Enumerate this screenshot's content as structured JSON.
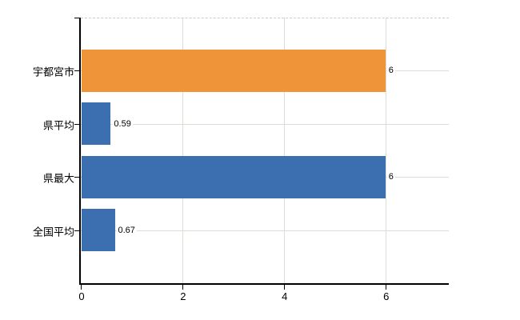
{
  "chart_data": {
    "type": "bar",
    "orientation": "horizontal",
    "title": "",
    "xlabel": "",
    "ylabel": "",
    "categories": [
      "宇都宮市",
      "県平均",
      "県最大",
      "全国平均"
    ],
    "values": [
      6,
      0.59,
      6,
      0.67
    ],
    "value_labels": [
      "6",
      "0.59",
      "6",
      "0.67"
    ],
    "bar_colors": [
      "#f0943a",
      "#3c6fb0",
      "#3c6fb0",
      "#3c6fb0"
    ],
    "x_ticks": [
      0,
      2,
      4,
      6
    ],
    "x_tick_labels": [
      "0",
      "2",
      "4",
      "6"
    ],
    "xlim": [
      0,
      7.25
    ],
    "grid": true,
    "legend": null,
    "colors": {
      "highlight_bar": "#f0943a",
      "default_bar": "#3c6fb0",
      "gridline": "#d9ded6",
      "axis": "#000000",
      "background": "#ffffff"
    }
  }
}
